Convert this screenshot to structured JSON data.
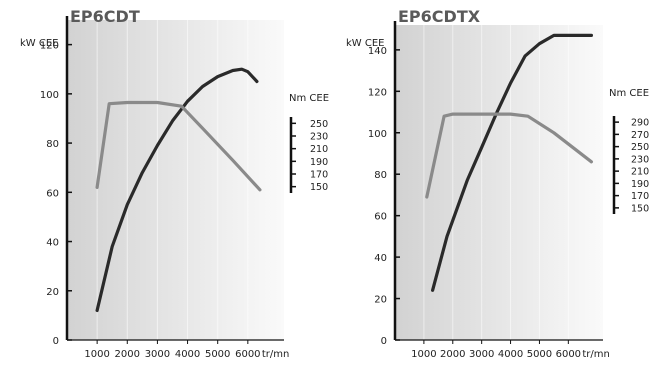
{
  "chart_data": [
    {
      "type": "line",
      "title": "EP6CDT",
      "ylabel": "kW CEE",
      "y2label": "Nm CEE",
      "xunit": "tr/mn",
      "xlim": [
        0,
        7200
      ],
      "ylim": [
        0,
        130
      ],
      "xticks": [
        1000,
        2000,
        3000,
        4000,
        5000,
        6000
      ],
      "yticks": [
        0,
        20,
        40,
        60,
        80,
        100,
        120
      ],
      "y2ticks": [
        250,
        230,
        210,
        190,
        170,
        150
      ],
      "series": [
        {
          "color": "#2a2a2a",
          "x": [
            1000,
            1500,
            2000,
            2500,
            3000,
            3500,
            4000,
            4500,
            5000,
            5500,
            5800,
            6000,
            6300
          ],
          "y": [
            12,
            38,
            55,
            68,
            79,
            89,
            97,
            103,
            107,
            109.5,
            110,
            109,
            105
          ]
        },
        {
          "color": "#8a8a8a",
          "x": [
            1000,
            1400,
            2000,
            3000,
            3800,
            4500,
            5500,
            6400
          ],
          "y": [
            62,
            96,
            96.5,
            96.5,
            95,
            86,
            73,
            61
          ]
        }
      ]
    },
    {
      "type": "line",
      "title": "EP6CDTX",
      "ylabel": "kW CEE",
      "y2label": "Nm CEE",
      "xunit": "tr/mn",
      "xlim": [
        0,
        7200
      ],
      "ylim": [
        0,
        152
      ],
      "xticks": [
        1000,
        2000,
        3000,
        4000,
        5000,
        6000
      ],
      "yticks": [
        0,
        20,
        40,
        60,
        80,
        100,
        120,
        140
      ],
      "y2ticks": [
        290,
        270,
        250,
        230,
        210,
        190,
        170,
        150
      ],
      "series": [
        {
          "color": "#2a2a2a",
          "x": [
            1300,
            1800,
            2500,
            3000,
            3500,
            4000,
            4500,
            5000,
            5500,
            6000,
            6800
          ],
          "y": [
            24,
            50,
            77,
            93,
            109,
            124,
            137,
            143,
            147,
            147,
            147
          ]
        },
        {
          "color": "#8a8a8a",
          "x": [
            1100,
            1700,
            2000,
            3000,
            4000,
            4600,
            5500,
            6800
          ],
          "y": [
            69,
            108,
            109,
            109,
            109,
            108,
            100,
            86
          ]
        }
      ]
    }
  ]
}
